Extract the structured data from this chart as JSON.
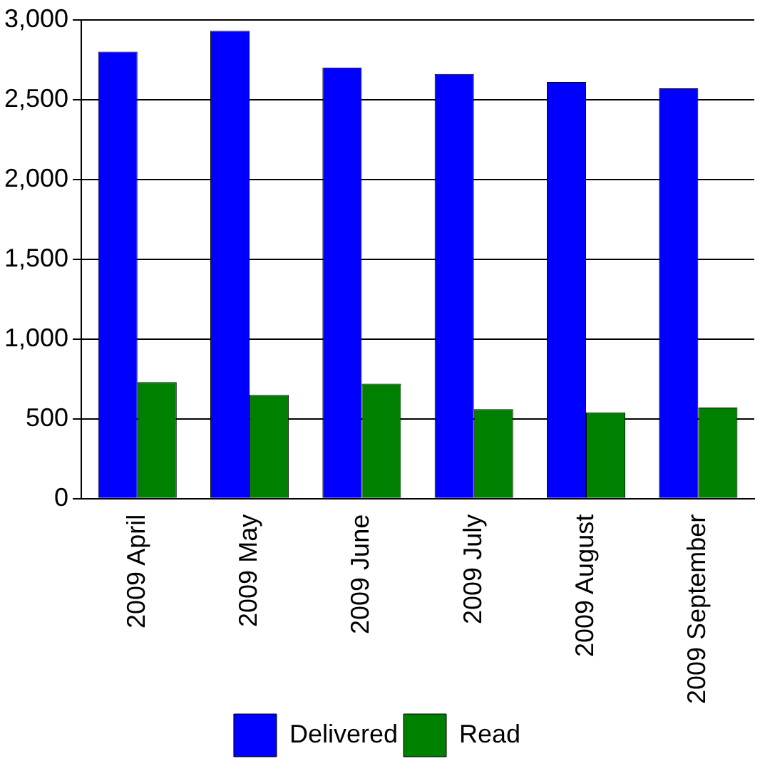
{
  "chart_data": {
    "type": "bar",
    "categories": [
      "2009 April",
      "2009 May",
      "2009 June",
      "2009 July",
      "2009 August",
      "2009 September"
    ],
    "series": [
      {
        "name": "Delivered",
        "color": "#0000ff",
        "values": [
          2800,
          2930,
          2700,
          2660,
          2610,
          2570
        ]
      },
      {
        "name": "Read",
        "color": "#008000",
        "values": [
          730,
          650,
          720,
          560,
          540,
          570
        ]
      }
    ],
    "ylim": [
      0,
      3000
    ],
    "yticks": [
      {
        "value": 0,
        "label": "0"
      },
      {
        "value": 500,
        "label": "500"
      },
      {
        "value": 1000,
        "label": "1,000"
      },
      {
        "value": 1500,
        "label": "1,500"
      },
      {
        "value": 2000,
        "label": "2,000"
      },
      {
        "value": 2500,
        "label": "2,500"
      },
      {
        "value": 3000,
        "label": "3,000"
      }
    ],
    "grid": "y",
    "legend": "bottom"
  }
}
